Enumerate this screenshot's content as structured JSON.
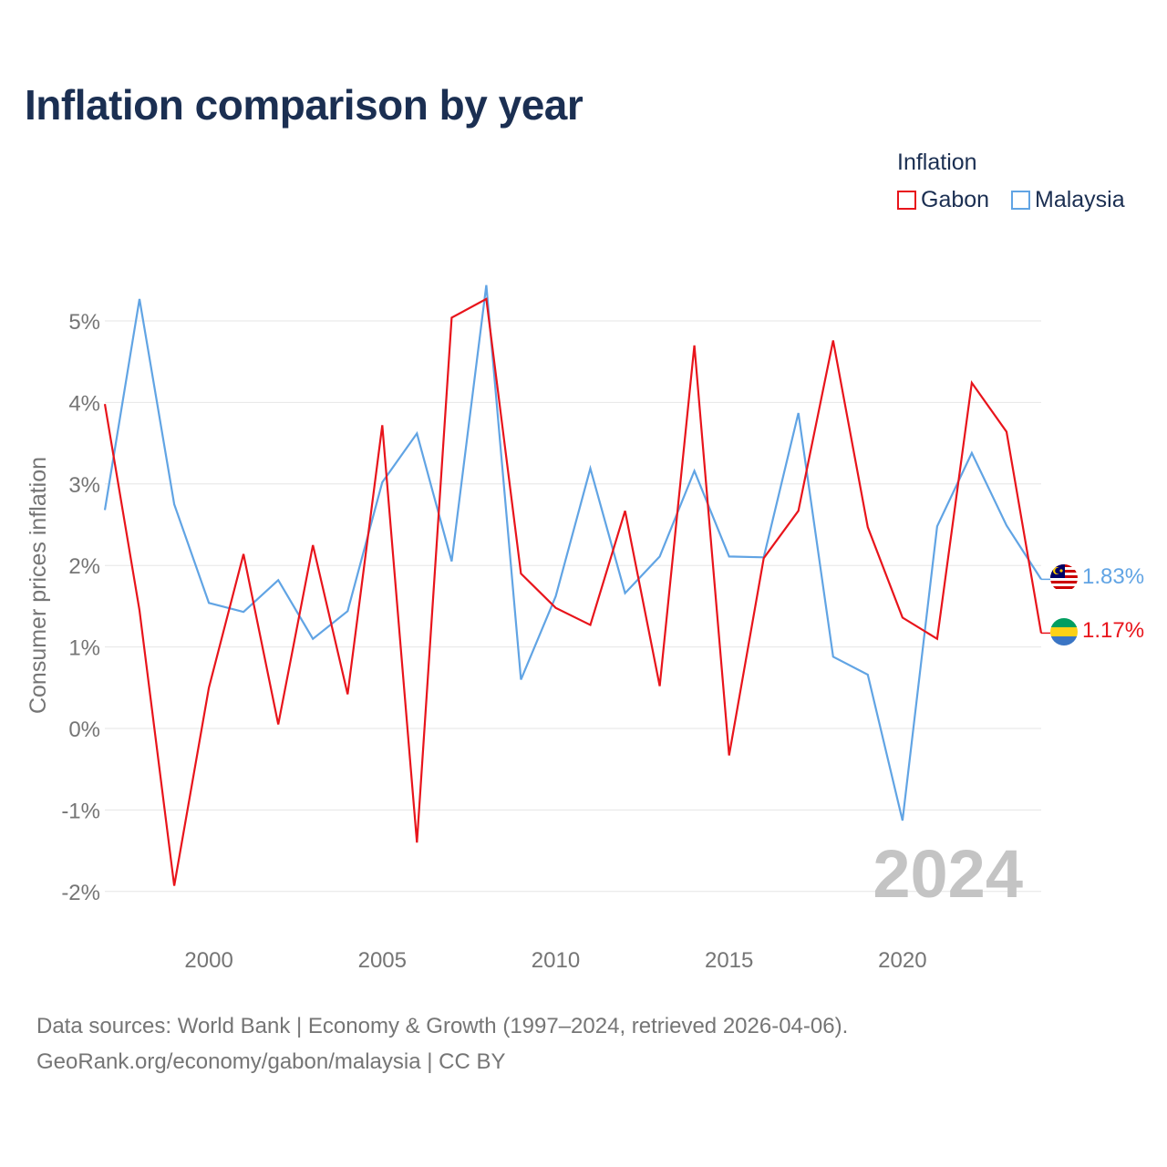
{
  "title": "Inflation comparison by year",
  "legend": {
    "title": "Inflation",
    "items": [
      {
        "label": "Gabon",
        "color": "#e8141b"
      },
      {
        "label": "Malaysia",
        "color": "#61a4e4"
      }
    ]
  },
  "source": {
    "line1": "Data sources: World Bank | Economy & Growth (1997–2024, retrieved 2026-04-06).",
    "line2": "GeoRank.org/economy/gabon/malaysia | CC BY"
  },
  "chart_data": {
    "type": "line",
    "title": "Inflation comparison by year",
    "xlabel": "",
    "ylabel": "Consumer prices inflation",
    "xlim": [
      1997,
      2024
    ],
    "ylim": [
      -2.2,
      5.6
    ],
    "x_ticks": [
      2000,
      2005,
      2010,
      2015,
      2020
    ],
    "y_ticks": [
      -2,
      -1,
      0,
      1,
      2,
      3,
      4,
      5
    ],
    "y_tick_labels": [
      "-2%",
      "-1%",
      "0%",
      "1%",
      "2%",
      "3%",
      "4%",
      "5%"
    ],
    "grid": true,
    "watermark_year": "2024",
    "x": [
      1997,
      1998,
      1999,
      2000,
      2001,
      2002,
      2003,
      2004,
      2005,
      2006,
      2007,
      2008,
      2009,
      2010,
      2011,
      2012,
      2013,
      2014,
      2015,
      2016,
      2017,
      2018,
      2019,
      2020,
      2021,
      2022,
      2023,
      2024
    ],
    "series": [
      {
        "name": "Gabon",
        "color": "#e8141b",
        "end_label": "1.17%",
        "values": [
          3.98,
          1.45,
          -1.93,
          0.5,
          2.14,
          0.05,
          2.25,
          0.42,
          3.72,
          -1.4,
          5.04,
          5.27,
          1.9,
          1.48,
          1.27,
          2.67,
          0.52,
          4.7,
          -0.33,
          2.09,
          2.67,
          4.76,
          2.47,
          1.36,
          1.1,
          4.24,
          3.64,
          1.17
        ]
      },
      {
        "name": "Malaysia",
        "color": "#61a4e4",
        "end_label": "1.83%",
        "values": [
          2.68,
          5.27,
          2.75,
          1.54,
          1.43,
          1.82,
          1.1,
          1.44,
          3.02,
          3.62,
          2.05,
          5.44,
          0.6,
          1.62,
          3.19,
          1.66,
          2.11,
          3.16,
          2.11,
          2.1,
          3.87,
          0.88,
          0.66,
          -1.13,
          2.48,
          3.38,
          2.49,
          1.83
        ]
      }
    ]
  }
}
